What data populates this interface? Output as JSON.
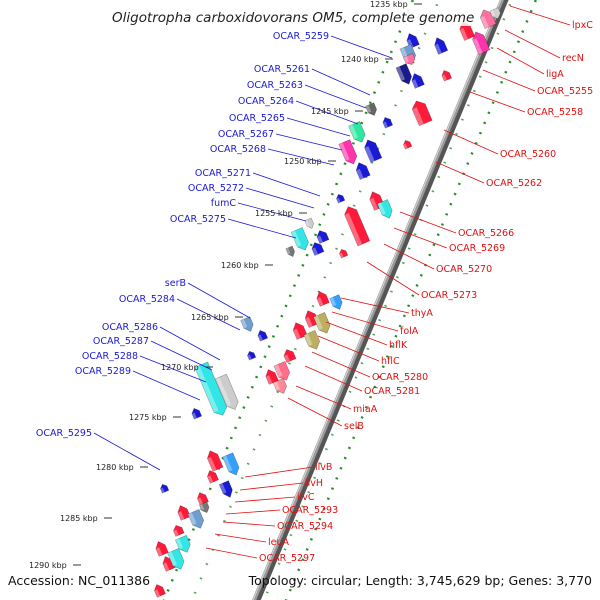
{
  "title": "Oligotropha carboxidovorans OM5, complete genome",
  "footer": {
    "accession": "Accession: NC_011386",
    "summary": "Topology: circular; Length: 3,745,629 bp; Genes: 3,770"
  },
  "colors": {
    "backbone": "#9a9a9a",
    "reverse_label": "#1a1ad6",
    "forward_label": "#e01010",
    "track_dots": "#2a8a2a"
  },
  "ticks": [
    "1235 kbp",
    "1240 kbp",
    "1245 kbp",
    "1250 kbp",
    "1255 kbp",
    "1260 kbp",
    "1265 kbp",
    "1270 kbp",
    "1275 kbp",
    "1280 kbp",
    "1285 kbp",
    "1290 kbp"
  ],
  "reverse_genes": [
    "OCAR_5259",
    "OCAR_5261",
    "OCAR_5263",
    "OCAR_5264",
    "OCAR_5265",
    "OCAR_5267",
    "OCAR_5268",
    "OCAR_5271",
    "OCAR_5272",
    "fumC",
    "OCAR_5275",
    "serB",
    "OCAR_5284",
    "OCAR_5286",
    "OCAR_5287",
    "OCAR_5288",
    "OCAR_5289",
    "OCAR_5295"
  ],
  "forward_genes": [
    "lpxC",
    "recN",
    "ligA",
    "OCAR_5255",
    "OCAR_5258",
    "OCAR_5260",
    "OCAR_5262",
    "OCAR_5266",
    "OCAR_5269",
    "OCAR_5270",
    "OCAR_5273",
    "thyA",
    "folA",
    "hflK",
    "hflC",
    "OCAR_5280",
    "OCAR_5281",
    "miaA",
    "selB",
    "ilvB",
    "ilvH",
    "ilvC",
    "OCAR_5293",
    "OCAR_5294",
    "leuA",
    "OCAR_5297"
  ]
}
